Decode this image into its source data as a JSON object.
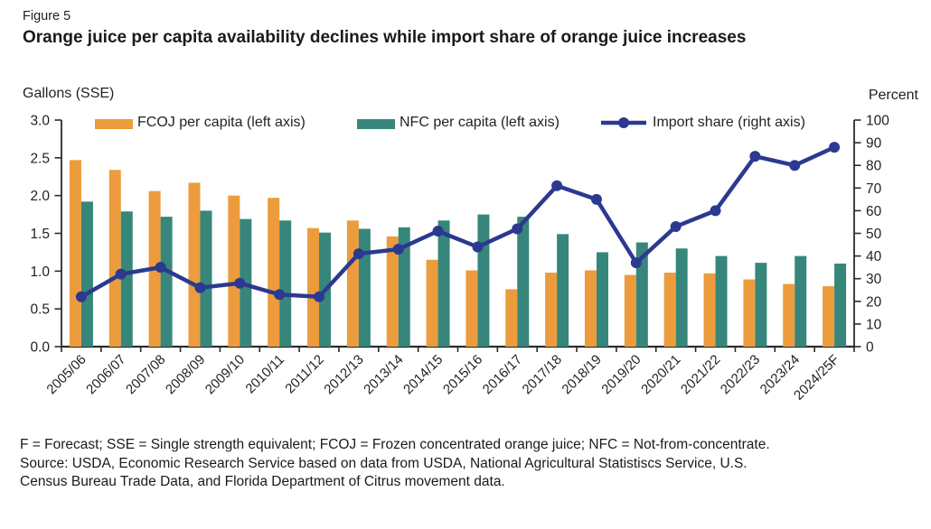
{
  "figure_label": "Figure 5",
  "footnotes": {
    "definitions": "F = Forecast; SSE = Single strength equivalent; FCOJ = Frozen concentrated orange juice; NFC = Not-from-concentrate.",
    "source": "Source: USDA, Economic Research Service based on data from USDA, National Agricultural Statistiscs Service, U.S. Census Bureau Trade Data, and Florida Department of Citrus movement data."
  },
  "chart_data": {
    "type": "combo-bar-line",
    "title": "Orange juice per capita availability declines while import share of orange juice increases",
    "categories": [
      "2005/06",
      "2006/07",
      "2007/08",
      "2008/09",
      "2009/10",
      "2010/11",
      "2011/12",
      "2012/13",
      "2013/14",
      "2014/15",
      "2015/16",
      "2016/17",
      "2017/18",
      "2018/19",
      "2019/20",
      "2020/21",
      "2021/22",
      "2022/23",
      "2023/24",
      "2024/25F"
    ],
    "series": [
      {
        "name": "FCOJ per capita (left axis)",
        "type": "bar",
        "axis": "left",
        "color": "#EC9C3D",
        "values": [
          2.47,
          2.34,
          2.06,
          2.17,
          2.0,
          1.97,
          1.57,
          1.67,
          1.46,
          1.15,
          1.01,
          0.76,
          0.98,
          1.01,
          0.95,
          0.98,
          0.97,
          0.89,
          0.83,
          0.8
        ]
      },
      {
        "name": "NFC per capita (left axis)",
        "type": "bar",
        "axis": "left",
        "color": "#37867B",
        "values": [
          1.92,
          1.79,
          1.72,
          1.8,
          1.69,
          1.67,
          1.51,
          1.56,
          1.58,
          1.67,
          1.75,
          1.72,
          1.49,
          1.25,
          1.38,
          1.3,
          1.2,
          1.11,
          1.2,
          1.1
        ]
      },
      {
        "name": "Import share (right axis)",
        "type": "line",
        "axis": "right",
        "color": "#2B3990",
        "values": [
          22,
          32,
          35,
          26,
          28,
          23,
          22,
          41,
          43,
          51,
          44,
          52,
          71,
          65,
          37,
          53,
          60,
          84,
          80,
          88
        ]
      }
    ],
    "left_axis": {
      "label": "Gallons (SSE)",
      "min": 0,
      "max": 3,
      "step": 0.5,
      "tick_decimals": 1
    },
    "right_axis": {
      "label": "Percent",
      "min": 0,
      "max": 100,
      "step": 10,
      "tick_decimals": 0
    },
    "grid": false,
    "legend_position": "top-inside",
    "axis_color": "#2B2B2B",
    "text_color": "#231F20"
  }
}
